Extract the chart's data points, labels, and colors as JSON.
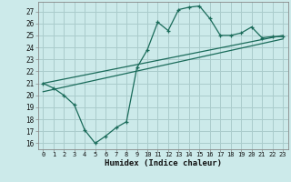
{
  "title": "",
  "xlabel": "Humidex (Indice chaleur)",
  "bg_color": "#cceaea",
  "grid_color": "#aacccc",
  "line_color": "#1a6b5a",
  "xlim": [
    -0.5,
    23.5
  ],
  "ylim": [
    15.5,
    27.8
  ],
  "xticks": [
    0,
    1,
    2,
    3,
    4,
    5,
    6,
    7,
    8,
    9,
    10,
    11,
    12,
    13,
    14,
    15,
    16,
    17,
    18,
    19,
    20,
    21,
    22,
    23
  ],
  "yticks": [
    16,
    17,
    18,
    19,
    20,
    21,
    22,
    23,
    24,
    25,
    26,
    27
  ],
  "main_x": [
    0,
    1,
    2,
    3,
    4,
    5,
    6,
    7,
    8,
    9,
    10,
    11,
    12,
    13,
    14,
    15,
    16,
    17,
    18,
    19,
    20,
    21,
    22,
    23
  ],
  "main_y": [
    21.0,
    20.6,
    20.0,
    19.2,
    17.1,
    16.0,
    16.6,
    17.3,
    17.8,
    22.3,
    23.8,
    26.1,
    25.4,
    27.15,
    27.35,
    27.45,
    26.4,
    25.0,
    25.0,
    25.2,
    25.7,
    24.8,
    24.9,
    24.9
  ],
  "line1_x": [
    0,
    23
  ],
  "line1_y": [
    21.0,
    25.0
  ],
  "line2_x": [
    0,
    23
  ],
  "line2_y": [
    20.3,
    24.7
  ]
}
